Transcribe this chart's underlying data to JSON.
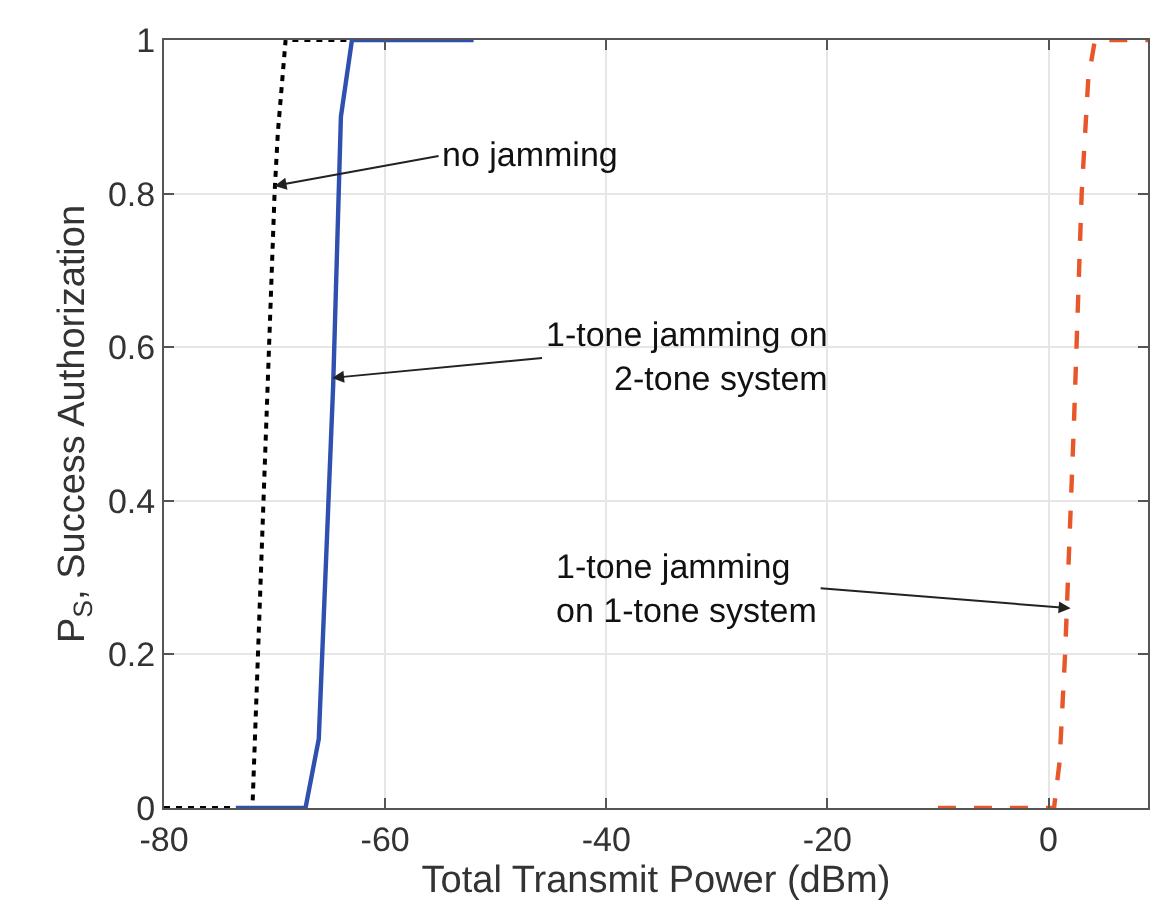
{
  "chart_data": {
    "type": "line",
    "xlabel": "Total Transmit Power (dBm)",
    "ylabel": "P$_{S}$, Success Authorization",
    "xlim": [
      -80,
      9
    ],
    "xticks": [
      -80,
      -60,
      -40,
      -20,
      0
    ],
    "ylim": [
      0,
      1
    ],
    "yticks": [
      0,
      {
        "value": 0.2,
        "label": "0.2"
      },
      {
        "value": 0.4,
        "label": "0.4"
      },
      {
        "value": 0.6,
        "label": "0.6"
      },
      {
        "value": 0.8,
        "label": "0.8"
      },
      1
    ],
    "grid": true,
    "marker": "none",
    "series": [
      {
        "color": "#000000",
        "line_style": "dotted",
        "x": [
          -80,
          -72,
          -71,
          -70,
          -69.7,
          -69,
          -58
        ],
        "values": [
          0,
          0,
          0.4,
          0.8,
          0.88,
          1,
          1
        ]
      },
      {
        "color": "#3050b0",
        "line_style": "solid",
        "x": [
          -73.5,
          -67.2,
          -66,
          -64.7,
          -64,
          -63,
          -52
        ],
        "values": [
          0,
          0,
          0.09,
          0.55,
          0.9,
          1,
          1
        ]
      },
      {
        "color": "#e8572a",
        "line_style": "dashed",
        "x": [
          -10,
          0.5,
          1,
          1.5,
          2.3,
          3,
          3.6,
          4.2,
          9
        ],
        "values": [
          0,
          0,
          0.06,
          0.2,
          0.5,
          0.8,
          0.95,
          1,
          1
        ]
      }
    ],
    "annotations": [
      {
        "text": "no jamming",
        "x": -70,
        "y": 0.81
      },
      {
        "text": "1-tone jamming on\n2-tone system",
        "x": -64.8,
        "y": 0.56
      },
      {
        "text": "1-tone jamming\non 1-tone system",
        "x": 2,
        "y": 0.26
      }
    ]
  }
}
